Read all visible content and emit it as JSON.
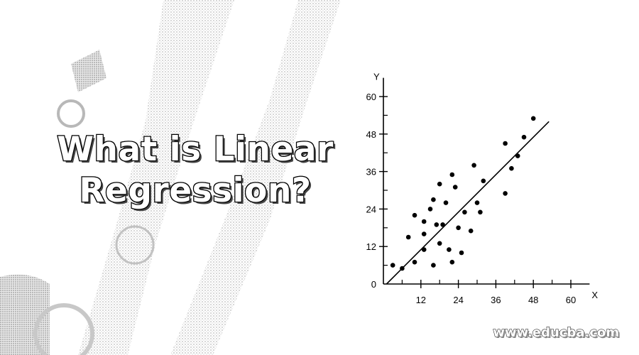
{
  "headline": {
    "line1": "What is Linear",
    "line2": "Regression?"
  },
  "watermark": "www.educba.com",
  "colors": {
    "background": "#ffffff",
    "ink": "#000000",
    "sketch": "#cfcfcf"
  },
  "chart_data": {
    "type": "scatter",
    "xlabel": "X",
    "ylabel": "Y",
    "xlim": [
      0,
      66
    ],
    "ylim": [
      0,
      66
    ],
    "x_ticks": [
      12,
      24,
      36,
      48,
      60
    ],
    "y_ticks": [
      0,
      12,
      24,
      36,
      48,
      60
    ],
    "grid": false,
    "points": [
      [
        3,
        6
      ],
      [
        6,
        5
      ],
      [
        8,
        15
      ],
      [
        10,
        7
      ],
      [
        10,
        22
      ],
      [
        13,
        20
      ],
      [
        13,
        16
      ],
      [
        13,
        11
      ],
      [
        15,
        24
      ],
      [
        16,
        27
      ],
      [
        16,
        6
      ],
      [
        17,
        19
      ],
      [
        18,
        32
      ],
      [
        18,
        13
      ],
      [
        19,
        19
      ],
      [
        20,
        26
      ],
      [
        21,
        11
      ],
      [
        22,
        7
      ],
      [
        22,
        35
      ],
      [
        23,
        31
      ],
      [
        24,
        18
      ],
      [
        25,
        10
      ],
      [
        26,
        23
      ],
      [
        28,
        17
      ],
      [
        29,
        38
      ],
      [
        30,
        26
      ],
      [
        31,
        23
      ],
      [
        32,
        33
      ],
      [
        39,
        45
      ],
      [
        39,
        29
      ],
      [
        41,
        37
      ],
      [
        43,
        41
      ],
      [
        45,
        47
      ],
      [
        48,
        53
      ]
    ],
    "trend_line": {
      "x": [
        1,
        53
      ],
      "y": [
        0,
        52
      ]
    }
  }
}
